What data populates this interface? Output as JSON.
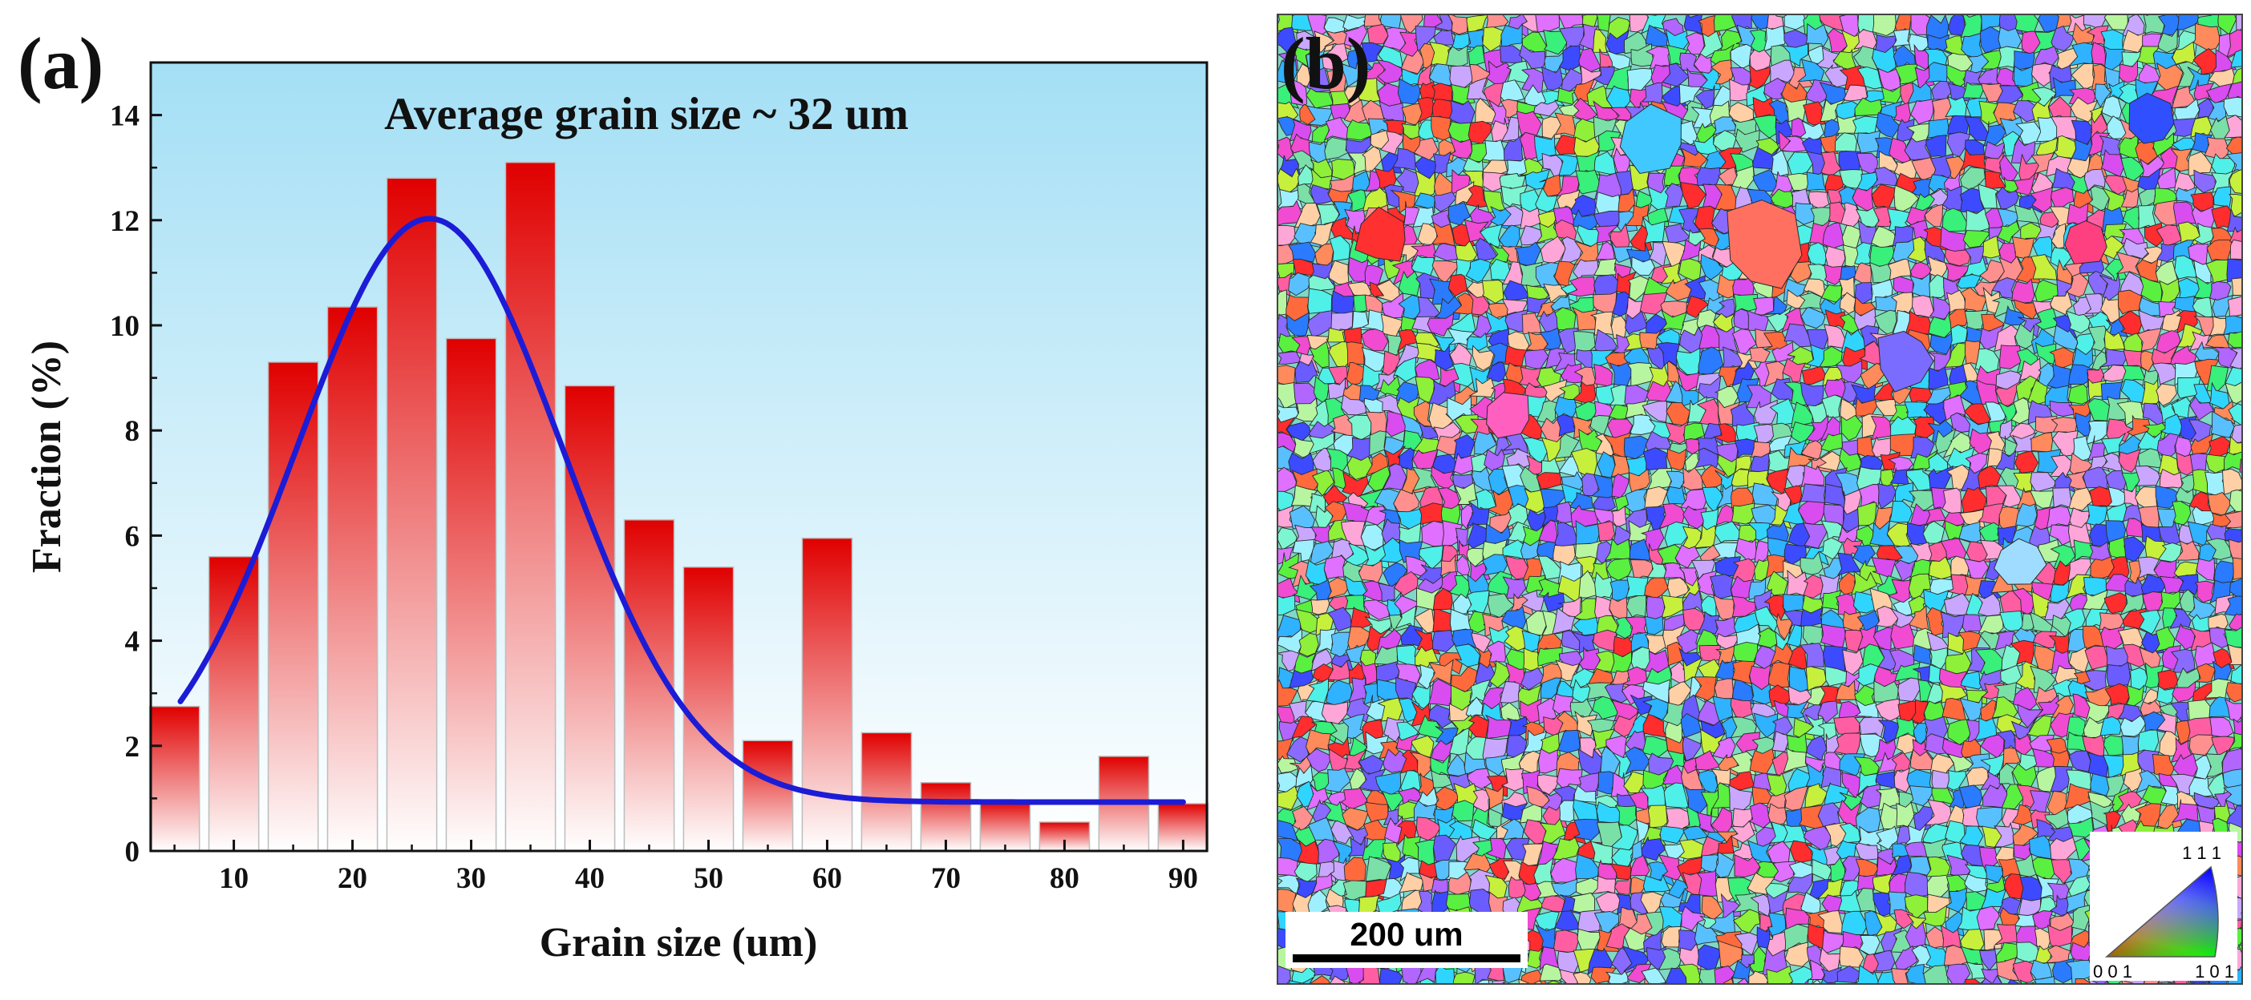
{
  "panel_a": {
    "label": "(a)"
  },
  "panel_b": {
    "label": "(b)",
    "scale_bar_label": "200 um",
    "ipf_labels": {
      "top": "1 1 1",
      "bottom_left": "0 0 1",
      "bottom_right": "1 0 1"
    }
  },
  "chart_data": {
    "type": "bar",
    "annotation": "Average grain size ~ 32 um",
    "xlabel": "Grain size (um)",
    "ylabel": "Fraction (%)",
    "xlim": [
      3,
      92
    ],
    "ylim": [
      0,
      15
    ],
    "xticks": [
      10,
      20,
      30,
      40,
      50,
      60,
      70,
      80,
      90
    ],
    "yticks": [
      0,
      2,
      4,
      6,
      8,
      10,
      12,
      14
    ],
    "bar_width": 4.2,
    "bars": [
      {
        "x": 5,
        "value": 2.75
      },
      {
        "x": 10,
        "value": 5.6
      },
      {
        "x": 15,
        "value": 9.3
      },
      {
        "x": 20,
        "value": 10.35
      },
      {
        "x": 25,
        "value": 12.8
      },
      {
        "x": 30,
        "value": 9.75
      },
      {
        "x": 35,
        "value": 13.1
      },
      {
        "x": 40,
        "value": 8.85
      },
      {
        "x": 45,
        "value": 6.3
      },
      {
        "x": 50,
        "value": 5.4
      },
      {
        "x": 55,
        "value": 2.1
      },
      {
        "x": 60,
        "value": 5.95
      },
      {
        "x": 65,
        "value": 2.25
      },
      {
        "x": 70,
        "value": 1.3
      },
      {
        "x": 75,
        "value": 0.95
      },
      {
        "x": 80,
        "value": 0.55
      },
      {
        "x": 85,
        "value": 1.8
      },
      {
        "x": 90,
        "value": 0.9
      }
    ],
    "fit": {
      "type": "gaussian",
      "x_range": [
        5.5,
        90
      ],
      "baseline": 0.93,
      "amplitude": 11.1,
      "center": 26.5,
      "sigma": 11.2
    },
    "colors": {
      "bar_top": "#e00000",
      "bar_bottom": "#ffffff",
      "fit_line": "#1c1cd6",
      "bg_top": "#a4dff5",
      "bg_bottom": "#ffffff"
    }
  }
}
